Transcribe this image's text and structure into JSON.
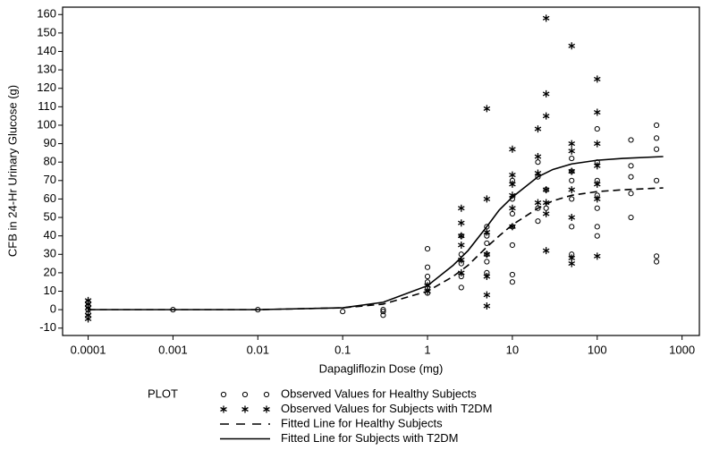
{
  "chart_data": {
    "type": "scatter",
    "x_label": "Dapagliflozin Dose (mg)",
    "y_label": "CFB in 24-Hr Urinary Glucose (g)",
    "legend_title": "PLOT",
    "xscale": "log",
    "xlim": [
      5e-05,
      1600
    ],
    "xticks": [
      0.0001,
      0.001,
      0.01,
      0.1,
      1,
      10,
      100,
      1000
    ],
    "ylim": [
      -14,
      164
    ],
    "yticks": [
      -10,
      0,
      10,
      20,
      30,
      40,
      50,
      60,
      70,
      80,
      90,
      100,
      110,
      120,
      130,
      140,
      150,
      160
    ],
    "series": [
      {
        "name": "Observed Values for Healthy Subjects",
        "kind": "points",
        "marker": "circle",
        "color": "#000000",
        "x": [
          0.0001,
          0.0001,
          0.0001,
          0.0001,
          0.001,
          0.01,
          0.1,
          0.3,
          0.3,
          0.3,
          1,
          1,
          1,
          1,
          1,
          1,
          2.5,
          2.5,
          2.5,
          2.5,
          2.5,
          5,
          5,
          5,
          5,
          5,
          5,
          10,
          10,
          10,
          10,
          10,
          10,
          10,
          20,
          20,
          20,
          20,
          25,
          25,
          50,
          50,
          50,
          50,
          50,
          50,
          100,
          100,
          100,
          100,
          100,
          100,
          100,
          250,
          250,
          250,
          250,
          250,
          500,
          500,
          500,
          500,
          500,
          500
        ],
        "values": [
          0,
          2,
          -2,
          4,
          0,
          0,
          -1,
          -1,
          -3,
          0,
          33,
          23,
          18,
          15,
          12,
          9,
          12,
          18,
          25,
          30,
          40,
          20,
          26,
          30,
          36,
          40,
          45,
          15,
          19,
          35,
          45,
          52,
          60,
          70,
          48,
          55,
          72,
          80,
          55,
          65,
          30,
          45,
          60,
          70,
          75,
          82,
          40,
          45,
          55,
          62,
          70,
          80,
          98,
          50,
          63,
          72,
          78,
          92,
          26,
          29,
          70,
          87,
          93,
          100
        ]
      },
      {
        "name": "Observed Values for Subjects with T2DM",
        "kind": "points",
        "marker": "asterisk",
        "color": "#000000",
        "x": [
          0.0001,
          0.0001,
          0.0001,
          0.0001,
          0.0001,
          1,
          1,
          2.5,
          2.5,
          2.5,
          2.5,
          2.5,
          2.5,
          5,
          5,
          5,
          5,
          5,
          5,
          5,
          10,
          10,
          10,
          10,
          10,
          10,
          20,
          20,
          20,
          20,
          25,
          25,
          25,
          25,
          25,
          25,
          25,
          50,
          50,
          50,
          50,
          50,
          50,
          50,
          50,
          100,
          100,
          100,
          100,
          100,
          100,
          100
        ],
        "values": [
          -5,
          -3,
          1,
          3,
          5,
          10,
          13,
          20,
          27,
          35,
          40,
          47,
          55,
          2,
          8,
          18,
          30,
          42,
          60,
          109,
          45,
          55,
          62,
          68,
          73,
          87,
          58,
          74,
          83,
          98,
          32,
          52,
          58,
          65,
          105,
          117,
          158,
          25,
          28,
          50,
          65,
          75,
          86,
          90,
          143,
          29,
          60,
          68,
          78,
          90,
          107,
          125
        ]
      },
      {
        "name": "Fitted Line for Healthy Subjects",
        "kind": "line",
        "dash": "dashed",
        "color": "#000000",
        "x": [
          0.0001,
          0.01,
          0.1,
          0.3,
          1,
          2,
          3,
          5,
          7,
          10,
          20,
          30,
          50,
          100,
          200,
          600
        ],
        "values": [
          0,
          0,
          1,
          3,
          10,
          18,
          24,
          34,
          40,
          46,
          55,
          59,
          62,
          64,
          65,
          66
        ]
      },
      {
        "name": "Fitted Line for Subjects with T2DM",
        "kind": "line",
        "dash": "solid",
        "color": "#000000",
        "x": [
          0.0001,
          0.01,
          0.1,
          0.3,
          1,
          2,
          3,
          5,
          7,
          10,
          20,
          30,
          50,
          100,
          200,
          600
        ],
        "values": [
          0,
          0,
          1,
          4,
          13,
          24,
          32,
          45,
          54,
          61,
          72,
          76,
          79,
          81,
          82,
          83
        ]
      }
    ]
  }
}
